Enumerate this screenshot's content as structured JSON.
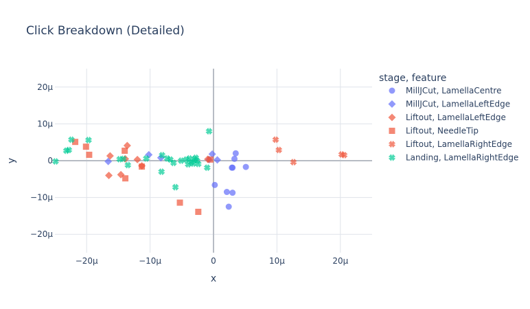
{
  "chart_data": {
    "type": "scatter",
    "title": "Click Breakdown (Detailed)",
    "xlabel": "x",
    "ylabel": "y",
    "xlim": [
      -25,
      25
    ],
    "ylim": [
      -25,
      25
    ],
    "x_ticks": [
      -20,
      -10,
      0,
      10,
      20
    ],
    "x_tick_labels": [
      "−20μ",
      "−10μ",
      "0",
      "10μ",
      "20μ"
    ],
    "y_ticks": [
      -20,
      -10,
      0,
      10,
      20
    ],
    "y_tick_labels": [
      "−20μ",
      "−10μ",
      "0",
      "10μ",
      "20μ"
    ],
    "grid": true,
    "legend_title": "stage, feature",
    "legend_position": "right",
    "series": [
      {
        "name": "MillJCut, LamellaCentre",
        "color": "#636efa",
        "symbol": "circle",
        "x": [
          0.2,
          3.0,
          3.3,
          3.5,
          5.1,
          2.9,
          2.1,
          2.4,
          3.0
        ],
        "y": [
          -6.6,
          -1.9,
          0.5,
          2.0,
          -1.7,
          -1.9,
          -8.5,
          -12.5,
          -8.7
        ]
      },
      {
        "name": "MillJCut, LamellaLeftEdge",
        "color": "#636efa",
        "symbol": "diamond",
        "x": [
          -16.6,
          -10.2,
          -8.3,
          -0.7,
          -0.2,
          0.6
        ],
        "y": [
          -0.2,
          1.6,
          0.8,
          0.3,
          1.8,
          0.2
        ]
      },
      {
        "name": "Liftout, LamellaLeftEdge",
        "color": "#ef553b",
        "symbol": "diamond",
        "x": [
          -16.3,
          -16.5,
          -14.6,
          -13.9,
          -13.6,
          -12.0,
          -11.3,
          -0.9
        ],
        "y": [
          1.3,
          -4.0,
          -3.8,
          0.5,
          4.1,
          0.3,
          -1.4,
          0.4
        ]
      },
      {
        "name": "Liftout, NeedleTip",
        "color": "#ef553b",
        "symbol": "square",
        "x": [
          -21.8,
          -20.1,
          -19.6,
          -14.0,
          -13.9,
          -11.3,
          -5.3,
          -2.4,
          -0.5
        ],
        "y": [
          5.1,
          3.8,
          1.6,
          2.7,
          -4.8,
          -1.6,
          -11.4,
          -13.9,
          0.3
        ]
      },
      {
        "name": "Liftout, LamellaRightEdge",
        "color": "#ef553b",
        "symbol": "x",
        "x": [
          9.8,
          10.3,
          12.6,
          20.2,
          20.6
        ],
        "y": [
          5.7,
          2.9,
          -0.4,
          1.7,
          1.5
        ]
      },
      {
        "name": "Landing, LamellaRightEdge",
        "color": "#00cc96",
        "symbol": "x",
        "x": [
          -24.9,
          -23.2,
          -22.8,
          -22.4,
          -19.7,
          -14.8,
          -14.2,
          -13.5,
          -10.6,
          -8.2,
          -8.1,
          -7.3,
          -6.8,
          -6.3,
          -6.0,
          -5.1,
          -4.3,
          -4.0,
          -3.8,
          -3.5,
          -3.2,
          -3.0,
          -2.8,
          -2.6,
          -2.4,
          -1.0,
          -0.7
        ],
        "y": [
          -0.2,
          2.7,
          2.9,
          5.7,
          5.6,
          0.4,
          0.5,
          -1.2,
          0.6,
          -3.0,
          1.5,
          0.6,
          0.3,
          -0.6,
          -7.2,
          0.0,
          0.3,
          -1.0,
          0.6,
          -0.4,
          -0.8,
          0.4,
          0.8,
          0.0,
          -0.9,
          -1.9,
          8.0
        ]
      }
    ]
  }
}
